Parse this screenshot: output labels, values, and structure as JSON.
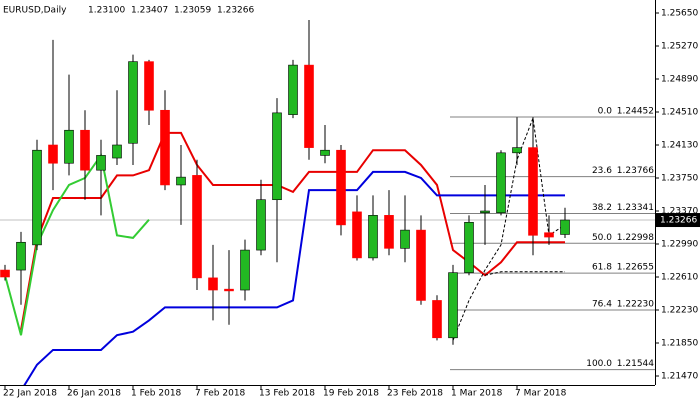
{
  "chart_data": {
    "type": "candlestick",
    "title": "EURUSD,Daily",
    "last_bar_labels": [
      "1.23100",
      "1.23407",
      "1.23059",
      "1.23266"
    ],
    "categories": [
      "22 Jan 2018",
      null,
      null,
      null,
      "26 Jan 2018",
      null,
      null,
      null,
      "1 Feb 2018",
      null,
      null,
      null,
      "7 Feb 2018",
      null,
      null,
      null,
      "13 Feb 2018",
      null,
      null,
      null,
      "19 Feb 2018",
      null,
      null,
      null,
      "23 Feb 2018",
      null,
      null,
      null,
      "1 Mar 2018",
      null,
      null,
      null,
      "7 Mar 2018",
      null,
      null,
      null
    ],
    "open": [
      1.2269,
      1.2269,
      1.2298,
      1.2413,
      1.2392,
      1.243,
      1.2384,
      1.2398,
      1.2415,
      1.2509,
      1.2453,
      1.2367,
      1.2378,
      1.226,
      1.2247,
      1.2246,
      1.2292,
      1.235,
      1.2448,
      1.2505,
      1.2401,
      1.2407,
      1.2336,
      1.2283,
      1.2332,
      1.2294,
      1.2315,
      1.2234,
      1.2191,
      1.2266,
      1.2335,
      1.2335,
      1.2404,
      1.241,
      1.2312,
      1.231
    ],
    "high": [
      1.2275,
      1.2313,
      1.2419,
      1.2534,
      1.2494,
      1.2453,
      1.2419,
      1.2476,
      1.2517,
      1.2511,
      1.2476,
      1.2413,
      1.2396,
      1.2298,
      1.2292,
      1.2304,
      1.2373,
      1.2467,
      1.2511,
      1.2557,
      1.2436,
      1.2413,
      1.2355,
      1.2355,
      1.2361,
      1.2355,
      1.2332,
      1.224,
      1.2275,
      1.2332,
      1.2367,
      1.2407,
      1.2445,
      1.2445,
      1.2332,
      1.23407
    ],
    "low": [
      1.2257,
      1.2229,
      1.2292,
      1.2361,
      1.2378,
      1.235,
      1.2332,
      1.239,
      1.239,
      1.2436,
      1.2361,
      1.2321,
      1.2246,
      1.2211,
      1.2206,
      1.2234,
      1.2286,
      1.2278,
      1.2444,
      1.2396,
      1.2392,
      1.2309,
      1.228,
      1.228,
      1.2286,
      1.2278,
      1.2229,
      1.2188,
      1.2183,
      1.2263,
      1.2298,
      1.2332,
      1.239,
      1.2286,
      1.2298,
      1.23059
    ],
    "close": [
      1.2261,
      1.2301,
      1.2407,
      1.2392,
      1.243,
      1.2384,
      1.2401,
      1.2413,
      1.2509,
      1.2453,
      1.2367,
      1.2376,
      1.226,
      1.2246,
      1.2245,
      1.2292,
      1.235,
      1.245,
      1.2505,
      1.241,
      1.2407,
      1.2321,
      1.2283,
      1.2332,
      1.2294,
      1.2315,
      1.2234,
      1.2191,
      1.2266,
      1.2324,
      1.2337,
      1.2404,
      1.241,
      1.2309,
      1.2307,
      1.23266
    ],
    "up_color": "#22b822",
    "down_color": "#ff0000",
    "lines": [
      {
        "color": "#e80000",
        "style": "solid",
        "values": [
          null,
          1.22,
          1.2304,
          1.2352,
          1.2352,
          1.2352,
          1.2352,
          1.2378,
          1.2378,
          1.2384,
          1.2427,
          1.2427,
          1.239,
          1.2367,
          1.2367,
          1.2367,
          1.2367,
          1.2367,
          1.2359,
          1.2382,
          1.2382,
          1.2382,
          1.2382,
          1.2407,
          1.2407,
          1.2407,
          1.239,
          1.2367,
          1.2292,
          1.2278,
          1.2263,
          1.2278,
          1.2301,
          1.2301,
          1.2301,
          1.2301
        ]
      },
      {
        "color": "#0000dd",
        "style": "solid",
        "values": [
          null,
          1.213,
          1.216,
          1.2177,
          1.2177,
          1.2177,
          1.2177,
          1.2194,
          1.2198,
          1.2211,
          1.2226,
          1.2226,
          1.2226,
          1.2226,
          1.2226,
          1.2226,
          1.2226,
          1.2226,
          1.2234,
          1.2361,
          1.2361,
          1.2361,
          1.2361,
          1.2382,
          1.2382,
          1.2382,
          1.2375,
          1.2355,
          1.2355,
          1.2355,
          1.2355,
          1.2355,
          1.2355,
          1.2355,
          1.2355,
          1.2355
        ]
      },
      {
        "color": "#33cc33",
        "style": "solid",
        "values": [
          1.2263,
          1.2194,
          1.2298,
          1.2338,
          1.2367,
          1.2375,
          1.2401,
          1.2309,
          1.2306,
          1.2327,
          null,
          null,
          null,
          null,
          null,
          null,
          null,
          null,
          null,
          null,
          null,
          null,
          null,
          null,
          null,
          null,
          null,
          null,
          null,
          null,
          null,
          null,
          null,
          null,
          null,
          null
        ]
      },
      {
        "color": "#000000",
        "style": "dashed",
        "values": [
          null,
          null,
          null,
          null,
          null,
          null,
          null,
          null,
          null,
          null,
          null,
          null,
          null,
          null,
          null,
          null,
          null,
          null,
          null,
          null,
          null,
          null,
          null,
          null,
          null,
          null,
          null,
          null,
          1.2188,
          1.2234,
          1.2269,
          1.2298,
          1.2396,
          1.2444,
          1.2309,
          1.2321
        ]
      },
      {
        "color": "#000000",
        "style": "dashed",
        "values": [
          null,
          null,
          null,
          null,
          null,
          null,
          null,
          null,
          null,
          null,
          null,
          null,
          null,
          null,
          null,
          null,
          null,
          null,
          null,
          null,
          null,
          null,
          null,
          null,
          null,
          null,
          null,
          null,
          null,
          null,
          1.2263,
          1.2267,
          1.2267,
          1.2267,
          1.2267,
          1.2267
        ]
      }
    ],
    "fib": [
      {
        "level": "0.0",
        "price": 1.24452
      },
      {
        "level": "23.6",
        "price": 1.23766
      },
      {
        "level": "38.2",
        "price": 1.23341
      },
      {
        "level": "50.0",
        "price": 1.22998
      },
      {
        "level": "61.8",
        "price": 1.22655
      },
      {
        "level": "76.4",
        "price": {
          "value": 1.2223,
          "label": "1.22230"
        }
      },
      {
        "level": "100.0",
        "price": 1.21544
      }
    ],
    "ylim": [
      1.2147,
      1.2565
    ],
    "yticks": [
      {
        "value": 1.2565,
        "label": "1.25650"
      },
      {
        "value": 1.2527,
        "label": "1.25270"
      },
      {
        "value": 1.2489,
        "label": "1.24890"
      },
      {
        "value": 1.2451,
        "label": "1.24510"
      },
      {
        "value": 1.2413,
        "label": "1.24130"
      },
      {
        "value": 1.2375,
        "label": "1.23750"
      },
      {
        "value": 1.2337,
        "label": "1.23370"
      },
      {
        "value": 1.2299,
        "label": "1.22990"
      },
      {
        "value": 1.2261,
        "label": "1.22610"
      },
      {
        "value": 1.2223,
        "label": "1.22230"
      },
      {
        "value": 1.2185,
        "label": "1.21850"
      },
      {
        "value": 1.2147,
        "label": "1.21470"
      }
    ]
  }
}
